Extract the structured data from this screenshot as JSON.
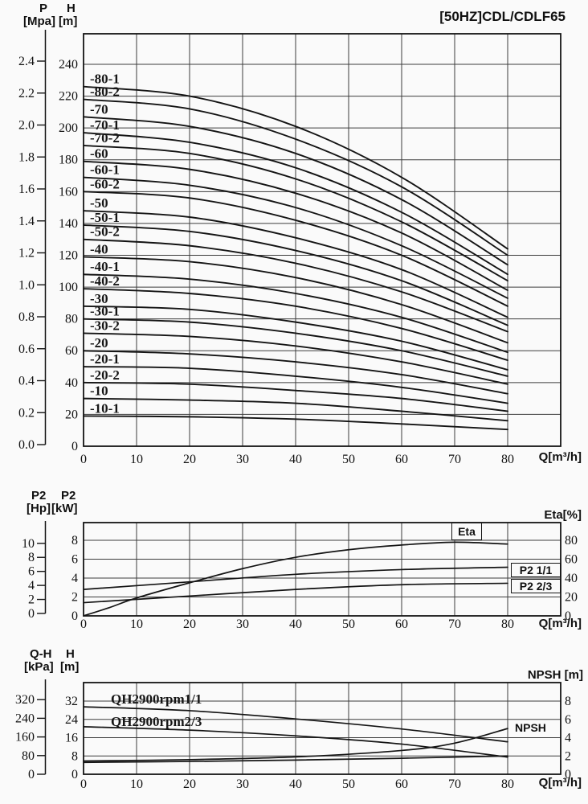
{
  "labels": {
    "title": "[50HZ]CDL/CDLF65",
    "hq": {
      "p_name": "P",
      "p_unit": "[Mpa]",
      "h_name": "H",
      "h_unit": "[m]",
      "q_unit": "Q[m³/h]"
    },
    "p2": {
      "hp_name": "P2",
      "hp_unit": "[Hp]",
      "kw_name": "P2",
      "kw_unit": "[kW]",
      "right_title": "Eta[%]",
      "q_unit": "Q[m³/h]",
      "box_eta": "Eta",
      "box_p2_full": "P2 1/1",
      "box_p2_23": "P2 2/3"
    },
    "qh": {
      "qh_name": "Q-H",
      "qh_unit": "[kPa]",
      "h_name": "H",
      "h_unit": "[m]",
      "right_title": "NPSH [m]",
      "q_unit": "Q[m³/h]",
      "curve_qh_full": "QH2900rpm1/1",
      "curve_qh_23": "QH2900rpm2/3",
      "curve_npsh": "NPSH"
    }
  },
  "chart_data": [
    {
      "id": "head-flow",
      "type": "line",
      "title": "[50HZ]CDL/CDLF65",
      "x_axis": {
        "label": "Q[m³/h]",
        "ticks": [
          0,
          10,
          20,
          30,
          40,
          50,
          60,
          70,
          80
        ],
        "range": [
          0,
          90
        ],
        "grid": true
      },
      "y_axis_pressure": {
        "label": "P [Mpa]",
        "ticks": [
          "0.0",
          "0.2",
          "0.4",
          "0.6",
          "0.8",
          "1.0",
          "1.2",
          "1.4",
          "1.6",
          "1.8",
          "2.0",
          "2.2",
          "2.4"
        ]
      },
      "y_axis_head": {
        "label": "H [m]",
        "ticks": [
          0,
          20,
          40,
          60,
          80,
          100,
          120,
          140,
          160,
          180,
          200,
          220,
          240
        ],
        "range": [
          0,
          260
        ]
      },
      "series": [
        {
          "label": "-80-1",
          "points": [
            [
              0,
              226
            ],
            [
              20,
              220
            ],
            [
              40,
              201
            ],
            [
              60,
              169
            ],
            [
              80,
              124
            ]
          ]
        },
        {
          "label": "-80-2",
          "points": [
            [
              0,
              218
            ],
            [
              20,
              212
            ],
            [
              40,
              193
            ],
            [
              60,
              163
            ],
            [
              80,
              120
            ]
          ]
        },
        {
          "label": "-70",
          "points": [
            [
              0,
              207
            ],
            [
              20,
              201
            ],
            [
              40,
              184
            ],
            [
              60,
              155
            ],
            [
              80,
              114
            ]
          ]
        },
        {
          "label": "-70-1",
          "points": [
            [
              0,
              197
            ],
            [
              20,
              191
            ],
            [
              40,
              175
            ],
            [
              60,
              147
            ],
            [
              80,
              108
            ]
          ]
        },
        {
          "label": "-70-2",
          "points": [
            [
              0,
              189
            ],
            [
              20,
              184
            ],
            [
              40,
              168
            ],
            [
              60,
              141
            ],
            [
              80,
              104
            ]
          ]
        },
        {
          "label": "-60",
          "points": [
            [
              0,
              179
            ],
            [
              20,
              174
            ],
            [
              40,
              159
            ],
            [
              60,
              134
            ],
            [
              80,
              98
            ]
          ]
        },
        {
          "label": "-60-1",
          "points": [
            [
              0,
              169
            ],
            [
              20,
              164
            ],
            [
              40,
              150
            ],
            [
              60,
              126
            ],
            [
              80,
              93
            ]
          ]
        },
        {
          "label": "-60-2",
          "points": [
            [
              0,
              160
            ],
            [
              20,
              156
            ],
            [
              40,
              142
            ],
            [
              60,
              120
            ],
            [
              80,
              88
            ]
          ]
        },
        {
          "label": "-50",
          "points": [
            [
              0,
              148
            ],
            [
              20,
              144
            ],
            [
              40,
              131
            ],
            [
              60,
              111
            ],
            [
              80,
              81
            ]
          ]
        },
        {
          "label": "-50-1",
          "points": [
            [
              0,
              139
            ],
            [
              20,
              135
            ],
            [
              40,
              123
            ],
            [
              60,
              104
            ],
            [
              80,
              76
            ]
          ]
        },
        {
          "label": "-50-2",
          "points": [
            [
              0,
              130
            ],
            [
              20,
              126
            ],
            [
              40,
              115
            ],
            [
              60,
              97
            ],
            [
              80,
              72
            ]
          ]
        },
        {
          "label": "-40",
          "points": [
            [
              0,
              119
            ],
            [
              20,
              116
            ],
            [
              40,
              106
            ],
            [
              60,
              89
            ],
            [
              80,
              65
            ]
          ]
        },
        {
          "label": "-40-1",
          "points": [
            [
              0,
              108
            ],
            [
              20,
              105
            ],
            [
              40,
              96
            ],
            [
              60,
              81
            ],
            [
              80,
              59
            ]
          ]
        },
        {
          "label": "-40-2",
          "points": [
            [
              0,
              99
            ],
            [
              20,
              96
            ],
            [
              40,
              88
            ],
            [
              60,
              74
            ],
            [
              80,
              54
            ]
          ]
        },
        {
          "label": "-30",
          "points": [
            [
              0,
              88
            ],
            [
              20,
              86
            ],
            [
              40,
              78
            ],
            [
              60,
              66
            ],
            [
              80,
              48
            ]
          ]
        },
        {
          "label": "-30-1",
          "points": [
            [
              0,
              80
            ],
            [
              20,
              78
            ],
            [
              40,
              71
            ],
            [
              60,
              60
            ],
            [
              80,
              44
            ]
          ]
        },
        {
          "label": "-30-2",
          "points": [
            [
              0,
              71
            ],
            [
              20,
              69
            ],
            [
              40,
              63
            ],
            [
              60,
              53
            ],
            [
              80,
              39
            ]
          ]
        },
        {
          "label": "-20",
          "points": [
            [
              0,
              60
            ],
            [
              20,
              58
            ],
            [
              40,
              53
            ],
            [
              60,
              45
            ],
            [
              80,
              33
            ]
          ]
        },
        {
          "label": "-20-1",
          "points": [
            [
              0,
              50
            ],
            [
              20,
              49
            ],
            [
              40,
              44
            ],
            [
              60,
              37
            ],
            [
              80,
              27
            ]
          ]
        },
        {
          "label": "-20-2",
          "points": [
            [
              0,
              40
            ],
            [
              20,
              39
            ],
            [
              40,
              35
            ],
            [
              60,
              30
            ],
            [
              80,
              22
            ]
          ]
        },
        {
          "label": "-10",
          "points": [
            [
              0,
              30
            ],
            [
              20,
              29
            ],
            [
              40,
              27
            ],
            [
              60,
              22
            ],
            [
              80,
              16
            ]
          ]
        },
        {
          "label": "-10-1",
          "points": [
            [
              0,
              19
            ],
            [
              20,
              18.5
            ],
            [
              40,
              17
            ],
            [
              60,
              14
            ],
            [
              80,
              10.5
            ]
          ]
        }
      ]
    },
    {
      "id": "power-efficiency",
      "type": "line",
      "x_axis": {
        "label": "Q[m³/h]",
        "ticks": [
          0,
          10,
          20,
          30,
          40,
          50,
          60,
          70,
          80
        ],
        "range": [
          0,
          90
        ],
        "grid": true
      },
      "y_axis_power_hp": {
        "label": "P2 [Hp]",
        "ticks": [
          0,
          2,
          4,
          6,
          8,
          10
        ]
      },
      "y_axis_power_kw": {
        "label": "P2 [kW]",
        "ticks": [
          0,
          2,
          4,
          6,
          8
        ],
        "range": [
          0,
          9.9
        ]
      },
      "y_axis_eta": {
        "label": "Eta[%]",
        "ticks": [
          0,
          20,
          40,
          60,
          80
        ],
        "position": "right"
      },
      "series": [
        {
          "id": "eta",
          "label": "Eta",
          "axis": "eta",
          "points": [
            [
              0,
              0
            ],
            [
              5,
              9
            ],
            [
              10,
              19
            ],
            [
              20,
              35
            ],
            [
              30,
              50
            ],
            [
              40,
              62
            ],
            [
              50,
              70
            ],
            [
              60,
              75
            ],
            [
              70,
              78
            ],
            [
              80,
              76
            ]
          ]
        },
        {
          "id": "p2-full",
          "label": "P2 1/1",
          "axis": "kw",
          "points": [
            [
              0,
              2.8
            ],
            [
              20,
              3.6
            ],
            [
              40,
              4.4
            ],
            [
              60,
              4.9
            ],
            [
              80,
              5.15
            ]
          ]
        },
        {
          "id": "p2-23",
          "label": "P2 2/3",
          "axis": "kw",
          "points": [
            [
              0,
              1.4
            ],
            [
              20,
              2.1
            ],
            [
              40,
              2.8
            ],
            [
              60,
              3.3
            ],
            [
              80,
              3.45
            ]
          ]
        }
      ]
    },
    {
      "id": "qh-npsh",
      "type": "line",
      "x_axis": {
        "label": "Q[m³/h]",
        "ticks": [
          0,
          10,
          20,
          30,
          40,
          50,
          60,
          70,
          80
        ],
        "range": [
          0,
          90
        ],
        "grid": true
      },
      "y_axis_kpa": {
        "label": "Q-H [kPa]",
        "ticks": [
          0,
          80,
          160,
          240,
          320
        ]
      },
      "y_axis_m": {
        "label": "H [m]",
        "ticks": [
          0,
          8,
          16,
          24,
          32
        ],
        "range": [
          0,
          40
        ]
      },
      "y_axis_npsh": {
        "label": "NPSH [m]",
        "ticks": [
          0,
          2,
          4,
          6,
          8
        ],
        "position": "right"
      },
      "series": [
        {
          "id": "qh-full",
          "label": "QH2900rpm1/1",
          "axis": "m",
          "points": [
            [
              0,
              29.5
            ],
            [
              20,
              27.8
            ],
            [
              40,
              24.2
            ],
            [
              60,
              19.8
            ],
            [
              80,
              14.2
            ]
          ]
        },
        {
          "id": "qh-23",
          "label": "QH2900rpm2/3",
          "axis": "m",
          "points": [
            [
              0,
              20.8
            ],
            [
              20,
              19.3
            ],
            [
              40,
              16.8
            ],
            [
              60,
              13.2
            ],
            [
              80,
              7.5
            ]
          ]
        },
        {
          "id": "npsh-full",
          "label": "NPSH",
          "axis": "npsh",
          "points": [
            [
              0,
              1.45
            ],
            [
              20,
              1.6
            ],
            [
              40,
              1.9
            ],
            [
              60,
              2.6
            ],
            [
              70,
              3.4
            ],
            [
              80,
              5.0
            ]
          ]
        },
        {
          "id": "npsh-23",
          "label": "",
          "axis": "npsh",
          "points": [
            [
              0,
              1.3
            ],
            [
              20,
              1.4
            ],
            [
              40,
              1.55
            ],
            [
              60,
              1.75
            ],
            [
              80,
              2.0
            ]
          ]
        }
      ]
    }
  ]
}
